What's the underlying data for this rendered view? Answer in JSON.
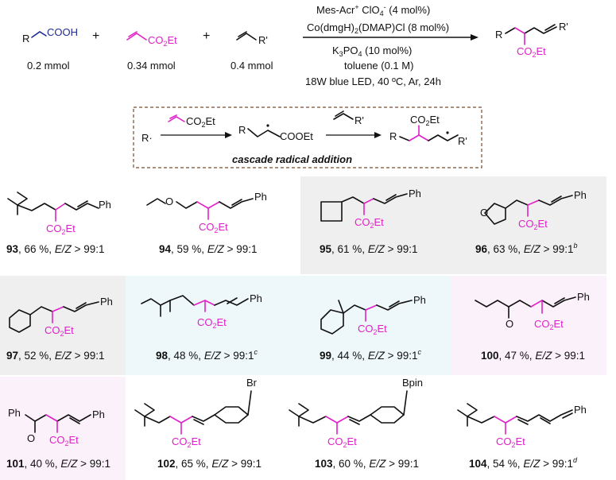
{
  "reaction": {
    "reactant1": {
      "formula": "R",
      "group": "COOH",
      "amount": "0.2 mmol"
    },
    "reactant2": {
      "formula": "CO2Et",
      "amount": "0.34 mmol"
    },
    "reactant3": {
      "formula": "R'",
      "amount": "0.4 mmol"
    },
    "plus": "+",
    "conditions_above": [
      "Mes-Acr+ ClO4- (4 mol%)",
      "Co(dmgH)2(DMAP)Cl (8 mol%)"
    ],
    "conditions_below": [
      "K3PO4 (10 mol%)",
      "toluene (0.1 M)",
      "18W blue LED, 40 ºC, Ar, 24h"
    ],
    "product": {
      "R": "R",
      "Rp": "R'",
      "ester": "CO2Et"
    }
  },
  "mechanism": {
    "radical": "R·",
    "reagent1": "CO2Et",
    "intermediate_ester": "COOEt",
    "reagent2": "R'",
    "final_ester": "CO2Et",
    "final_R": "R",
    "final_Rp": "R'",
    "caption": "cascade radical addition"
  },
  "entries": [
    {
      "num": "93",
      "yield": "66 %",
      "er": "E/Z > 99:1",
      "note": ""
    },
    {
      "num": "94",
      "yield": "59 %",
      "er": "E/Z > 99:1",
      "note": ""
    },
    {
      "num": "95",
      "yield": "61 %",
      "er": "E/Z > 99:1",
      "note": ""
    },
    {
      "num": "96",
      "yield": "63 %",
      "er": "E/Z > 99:1",
      "note": "b"
    },
    {
      "num": "97",
      "yield": "52 %",
      "er": "E/Z > 99:1",
      "note": ""
    },
    {
      "num": "98",
      "yield": "48 %",
      "er": "E/Z > 99:1",
      "note": "c"
    },
    {
      "num": "99",
      "yield": "44 %",
      "er": "E/Z > 99:1",
      "note": "c"
    },
    {
      "num": "100",
      "yield": "47 %",
      "er": "E/Z > 99:1",
      "note": ""
    },
    {
      "num": "101",
      "yield": "40 %",
      "er": "E/Z > 99:1",
      "note": ""
    },
    {
      "num": "102",
      "yield": "65 %",
      "er": "E/Z > 99:1",
      "note": ""
    },
    {
      "num": "103",
      "yield": "60 %",
      "er": "E/Z > 99:1",
      "note": ""
    },
    {
      "num": "104",
      "yield": "54 %",
      "er": "E/Z > 99:1",
      "note": "d"
    }
  ],
  "labels": {
    "ph": "Ph",
    "co2et": "CO2Et",
    "o": "O",
    "br": "Br",
    "bpin": "Bpin"
  },
  "colors": {
    "magenta": "#e020c8",
    "blue": "#1f2b8f",
    "gray_panel": "#efefef",
    "cyan_panel": "#eef7f9",
    "pink_panel": "#fbf1fa"
  }
}
